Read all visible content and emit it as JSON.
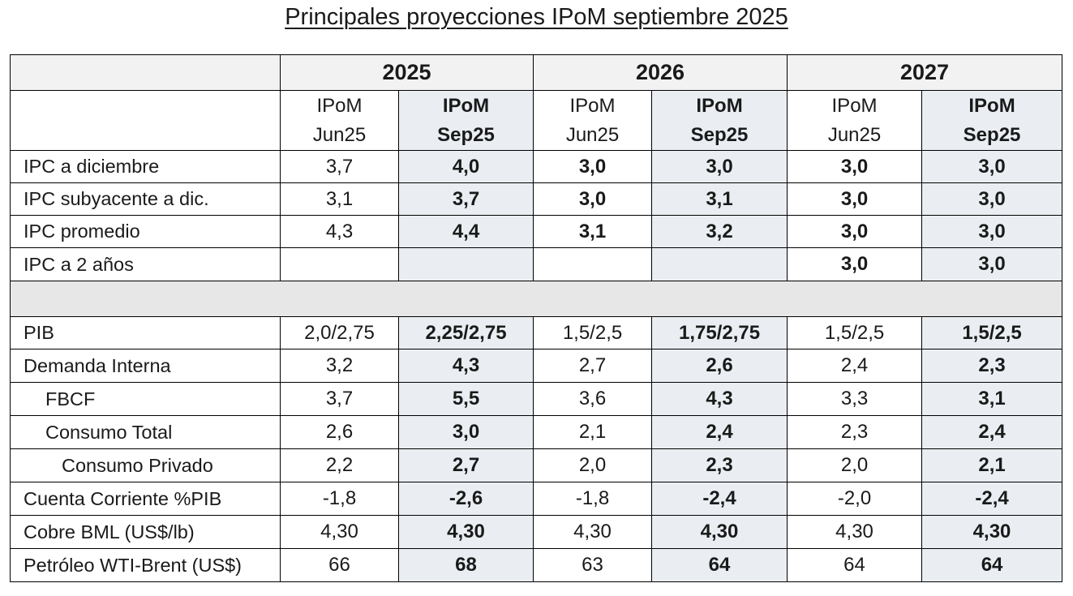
{
  "title": "Principales proyecciones IPoM septiembre 2025",
  "years": [
    "2025",
    "2026",
    "2027"
  ],
  "subheaders": [
    {
      "l1": "IPoM",
      "l2": "Jun25"
    },
    {
      "l1": "IPoM",
      "l2": "Sep25"
    },
    {
      "l1": "IPoM",
      "l2": "Jun25"
    },
    {
      "l1": "IPoM",
      "l2": "Sep25"
    },
    {
      "l1": "IPoM",
      "l2": "Jun25"
    },
    {
      "l1": "IPoM",
      "l2": "Sep25"
    }
  ],
  "inflation_rows": [
    {
      "label": "IPC a diciembre",
      "values": [
        "3,7",
        "4,0",
        "3,0",
        "3,0",
        "3,0",
        "3,0"
      ]
    },
    {
      "label": "IPC subyacente a dic.",
      "values": [
        "3,1",
        "3,7",
        "3,0",
        "3,1",
        "3,0",
        "3,0"
      ]
    },
    {
      "label": "IPC promedio",
      "values": [
        "4,3",
        "4,4",
        "3,1",
        "3,2",
        "3,0",
        "3,0"
      ]
    },
    {
      "label": "IPC a 2 años",
      "values": [
        "",
        "",
        "",
        "",
        "3,0",
        "3,0"
      ]
    }
  ],
  "activity_rows": [
    {
      "label": "PIB",
      "values": [
        "2,0/2,75",
        "2,25/2,75",
        "1,5/2,5",
        "1,75/2,75",
        "1,5/2,5",
        "1,5/2,5"
      ]
    },
    {
      "label": "Demanda Interna",
      "values": [
        "3,2",
        "4,3",
        "2,7",
        "2,6",
        "2,4",
        "2,3"
      ]
    },
    {
      "label": "FBCF",
      "values": [
        "3,7",
        "5,5",
        "3,6",
        "4,3",
        "3,3",
        "3,1"
      ]
    },
    {
      "label": "Consumo Total",
      "values": [
        "2,6",
        "3,0",
        "2,1",
        "2,4",
        "2,3",
        "2,4"
      ]
    },
    {
      "label": "Consumo Privado",
      "values": [
        "2,2",
        "2,7",
        "2,0",
        "2,3",
        "2,0",
        "2,1"
      ]
    },
    {
      "label": "Cuenta Corriente %PIB",
      "values": [
        "-1,8",
        "-2,6",
        "-1,8",
        "-2,4",
        "-2,0",
        "-2,4"
      ]
    },
    {
      "label": "Cobre BML (US$/lb)",
      "values": [
        "4,30",
        "4,30",
        "4,30",
        "4,30",
        "4,30",
        "4,30"
      ]
    },
    {
      "label": "Petróleo WTI-Brent (US$)",
      "values": [
        "66",
        "68",
        "63",
        "64",
        "64",
        "64"
      ]
    }
  ],
  "colors": {
    "header_bg": "#f2f2f2",
    "highlight_column_bg": "#eaeef2",
    "separator_bg": "#e7e7e7",
    "border": "#000000"
  }
}
